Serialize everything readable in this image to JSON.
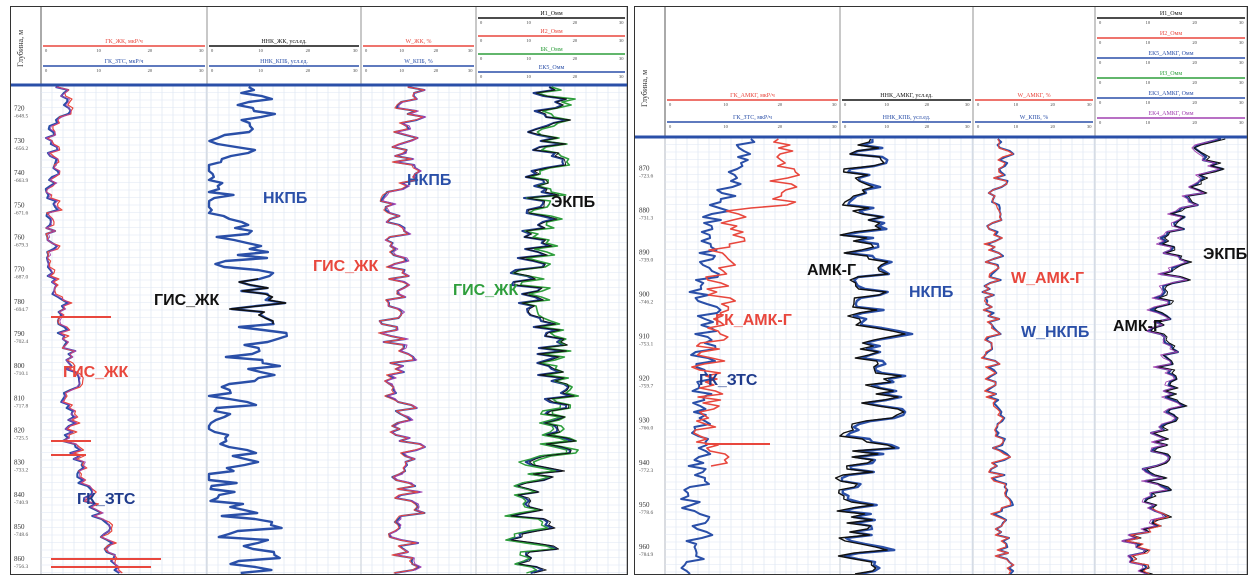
{
  "colors": {
    "red": "#e8473d",
    "blue": "#2a4fa8",
    "darkblue": "#1f3b8c",
    "black": "#111111",
    "green": "#2e9e3c",
    "purple": "#a040b0",
    "grid": "#b9c7e4",
    "gridMinor": "#dde5f3"
  },
  "chart_data": [
    {
      "type": "line",
      "panel": "left",
      "depth_axis": {
        "label": "Глубина, м",
        "ticks": [
          {
            "md": "720",
            "tvd": "-648.5"
          },
          {
            "md": "730",
            "tvd": "-656.2"
          },
          {
            "md": "740",
            "tvd": "-663.9"
          },
          {
            "md": "750",
            "tvd": "-671.6"
          },
          {
            "md": "760",
            "tvd": "-679.3"
          },
          {
            "md": "770",
            "tvd": "-687.0"
          },
          {
            "md": "780",
            "tvd": "-694.7"
          },
          {
            "md": "790",
            "tvd": "-702.4"
          },
          {
            "md": "800",
            "tvd": "-710.1"
          },
          {
            "md": "810",
            "tvd": "-717.8"
          },
          {
            "md": "820",
            "tvd": "-725.5"
          },
          {
            "md": "830",
            "tvd": "-733.2"
          },
          {
            "md": "840",
            "tvd": "-740.9"
          },
          {
            "md": "850",
            "tvd": "-748.6"
          },
          {
            "md": "860",
            "tvd": "-756.3"
          }
        ],
        "range": [
          712,
          864
        ]
      },
      "tracks": [
        {
          "headers": [
            {
              "text": "ГК_ЖК, мкР/ч",
              "color": "#e8473d"
            },
            {
              "text": "ГК_ЗТС, мкР/ч",
              "color": "#2a4fa8"
            }
          ],
          "labels": [
            {
              "text": "ГИС_ЖК",
              "color": "#e8473d"
            },
            {
              "text": "ГК_ЗТС",
              "color": "#1f3b8c"
            }
          ]
        },
        {
          "headers": [
            {
              "text": "ННК_ЖК, усл.ед.",
              "color": "#111111"
            },
            {
              "text": "ННК_КПБ, усл.ед.",
              "color": "#2a4fa8"
            }
          ],
          "labels": [
            {
              "text": "НКПБ",
              "color": "#2a4fa8"
            },
            {
              "text": "ГИС_ЖК",
              "color": "#111111"
            }
          ]
        },
        {
          "headers": [
            {
              "text": "W_ЖК, %",
              "color": "#e8473d"
            },
            {
              "text": "W_КПБ, %",
              "color": "#2a4fa8"
            }
          ],
          "labels": [
            {
              "text": "НКПБ",
              "color": "#2a4fa8"
            },
            {
              "text": "ГИС_ЖК",
              "color": "#e8473d"
            }
          ]
        },
        {
          "headers": [
            {
              "text": "И1_Омм",
              "color": "#111111"
            },
            {
              "text": "И2_Омм",
              "color": "#e8473d"
            },
            {
              "text": "БК_Омм",
              "color": "#2e9e3c"
            },
            {
              "text": "ЕК5_Омм",
              "color": "#2a4fa8"
            }
          ],
          "labels": [
            {
              "text": "ЭКПБ",
              "color": "#111111"
            },
            {
              "text": "ГИС_ЖК",
              "color": "#2e9e3c"
            }
          ]
        }
      ]
    },
    {
      "type": "line",
      "panel": "right",
      "depth_axis": {
        "label": "Глубина, м",
        "ticks": [
          {
            "md": "870",
            "tvd": "-723.6"
          },
          {
            "md": "880",
            "tvd": "-731.3"
          },
          {
            "md": "890",
            "tvd": "-739.0"
          },
          {
            "md": "900",
            "tvd": "-746.2"
          },
          {
            "md": "910",
            "tvd": "-753.1"
          },
          {
            "md": "920",
            "tvd": "-759.7"
          },
          {
            "md": "930",
            "tvd": "-766.0"
          },
          {
            "md": "940",
            "tvd": "-772.3"
          },
          {
            "md": "950",
            "tvd": "-778.6"
          },
          {
            "md": "960",
            "tvd": "-784.9"
          }
        ],
        "range": [
          862,
          966
        ]
      },
      "tracks": [
        {
          "headers": [
            {
              "text": "ГК_АМКГ, мкР/ч",
              "color": "#e8473d"
            },
            {
              "text": "ГК_ЗТС, мкР/ч",
              "color": "#2a4fa8"
            }
          ],
          "labels": [
            {
              "text": "ГК_АМК-Г",
              "color": "#e8473d"
            },
            {
              "text": "ГК_ЗТС",
              "color": "#1f3b8c"
            }
          ]
        },
        {
          "headers": [
            {
              "text": "ННК_АМКГ, усл.ед.",
              "color": "#111111"
            },
            {
              "text": "ННК_КПБ, усл.ед.",
              "color": "#2a4fa8"
            }
          ],
          "labels": [
            {
              "text": "АМК-Г",
              "color": "#111111"
            },
            {
              "text": "НКПБ",
              "color": "#2a4fa8"
            }
          ]
        },
        {
          "headers": [
            {
              "text": "W_АМКГ, %",
              "color": "#e8473d"
            },
            {
              "text": "W_КПБ, %",
              "color": "#2a4fa8"
            }
          ],
          "labels": [
            {
              "text": "W_АМК-Г",
              "color": "#e8473d"
            },
            {
              "text": "W_НКПБ",
              "color": "#2a4fa8"
            }
          ]
        },
        {
          "headers": [
            {
              "text": "И1_Омм",
              "color": "#111111"
            },
            {
              "text": "И2_Омм",
              "color": "#e8473d"
            },
            {
              "text": "ЕК5_АМКГ, Омм",
              "color": "#2a4fa8"
            },
            {
              "text": "ИЗ_Омм",
              "color": "#2e9e3c"
            },
            {
              "text": "ЕК3_АМКГ, Омм",
              "color": "#2a4fa8"
            },
            {
              "text": "ЕК4_АМКГ, Омм",
              "color": "#a040b0"
            }
          ],
          "labels": [
            {
              "text": "ЭКПБ",
              "color": "#111111"
            },
            {
              "text": "АМК-Г",
              "color": "#111111"
            }
          ]
        }
      ]
    }
  ]
}
